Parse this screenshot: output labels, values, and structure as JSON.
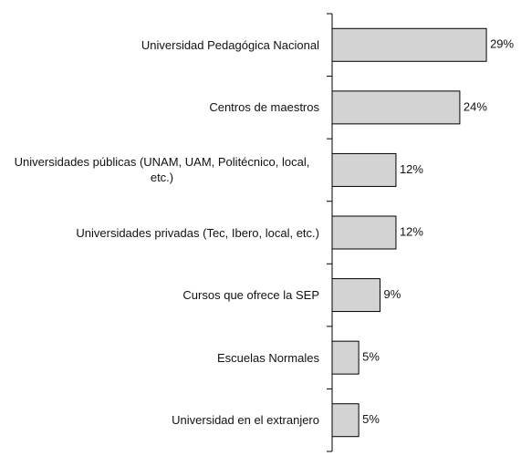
{
  "chart_data": {
    "type": "barh",
    "categories": [
      "Universidad Pedagógica Nacional",
      "Centros de maestros",
      "Universidades públicas (UNAM, UAM, Politécnico, local, etc.)",
      "Universidades privadas (Tec, Ibero, local, etc.)",
      "Cursos que ofrece la SEP",
      "Escuelas Normales",
      "Universidad en el extranjero"
    ],
    "values": [
      29,
      24,
      12,
      12,
      9,
      5,
      5
    ],
    "value_labels": [
      "29%",
      "24%",
      "12%",
      "12%",
      "9%",
      "5%",
      "5%"
    ],
    "color": "#d3d3d3"
  }
}
